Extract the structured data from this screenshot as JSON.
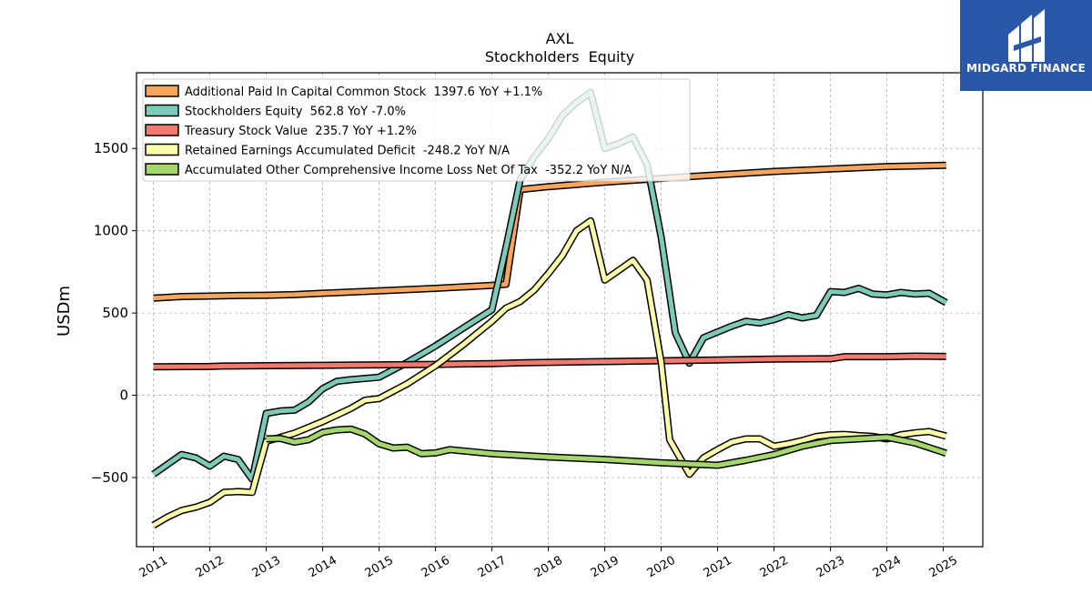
{
  "chart_data": {
    "type": "line",
    "title": "AXL",
    "subtitle": "Stockholders  Equity",
    "ylabel": "USDm",
    "xlabel": "",
    "xlim": [
      2010.7,
      2025.7
    ],
    "ylim": [
      -920,
      1960
    ],
    "grid": true,
    "legend_position": "top-left",
    "x_ticks": [
      2011,
      2012,
      2013,
      2014,
      2015,
      2016,
      2017,
      2018,
      2019,
      2020,
      2021,
      2022,
      2023,
      2024,
      2025
    ],
    "x_tick_labels": [
      "2011",
      "2012",
      "2013",
      "2014",
      "2015",
      "2016",
      "2017",
      "2018",
      "2019",
      "2020",
      "2021",
      "2022",
      "2023",
      "2024",
      "2025"
    ],
    "y_ticks": [
      -500,
      0,
      500,
      1000,
      1500
    ],
    "y_tick_labels": [
      "−500",
      "0",
      "500",
      "1000",
      "1500"
    ],
    "series": [
      {
        "name": "Additional Paid In Capital Common Stock  1397.6 YoY +1.1%",
        "color": "#f5a55c",
        "points": [
          [
            2011.0,
            590
          ],
          [
            2011.5,
            600
          ],
          [
            2012.0,
            603
          ],
          [
            2012.5,
            606
          ],
          [
            2013.0,
            608
          ],
          [
            2013.5,
            612
          ],
          [
            2014.0,
            620
          ],
          [
            2015.0,
            635
          ],
          [
            2016.0,
            650
          ],
          [
            2017.0,
            668
          ],
          [
            2017.25,
            675
          ],
          [
            2017.5,
            1250
          ],
          [
            2018.0,
            1268
          ],
          [
            2019.0,
            1295
          ],
          [
            2020.0,
            1318
          ],
          [
            2021.0,
            1340
          ],
          [
            2022.0,
            1360
          ],
          [
            2023.0,
            1375
          ],
          [
            2024.0,
            1390
          ],
          [
            2025.05,
            1398
          ]
        ]
      },
      {
        "name": "Stockholders Equity  562.8 YoY -7.0%",
        "color": "#7ecab9",
        "points": [
          [
            2011.0,
            -480
          ],
          [
            2011.25,
            -420
          ],
          [
            2011.5,
            -360
          ],
          [
            2011.75,
            -380
          ],
          [
            2012.0,
            -430
          ],
          [
            2012.25,
            -370
          ],
          [
            2012.5,
            -390
          ],
          [
            2012.75,
            -510
          ],
          [
            2013.0,
            -110
          ],
          [
            2013.25,
            -95
          ],
          [
            2013.5,
            -90
          ],
          [
            2013.75,
            -40
          ],
          [
            2014.0,
            40
          ],
          [
            2014.25,
            85
          ],
          [
            2014.5,
            95
          ],
          [
            2015.0,
            110
          ],
          [
            2015.5,
            200
          ],
          [
            2016.0,
            300
          ],
          [
            2016.5,
            410
          ],
          [
            2017.0,
            520
          ],
          [
            2017.25,
            900
          ],
          [
            2017.5,
            1310
          ],
          [
            2017.75,
            1450
          ],
          [
            2018.0,
            1560
          ],
          [
            2018.25,
            1700
          ],
          [
            2018.5,
            1780
          ],
          [
            2018.75,
            1840
          ],
          [
            2019.0,
            1500
          ],
          [
            2019.25,
            1530
          ],
          [
            2019.5,
            1570
          ],
          [
            2019.75,
            1400
          ],
          [
            2020.0,
            960
          ],
          [
            2020.25,
            380
          ],
          [
            2020.5,
            195
          ],
          [
            2020.75,
            350
          ],
          [
            2021.0,
            385
          ],
          [
            2021.25,
            420
          ],
          [
            2021.5,
            450
          ],
          [
            2021.75,
            440
          ],
          [
            2022.0,
            460
          ],
          [
            2022.25,
            490
          ],
          [
            2022.5,
            470
          ],
          [
            2022.75,
            485
          ],
          [
            2023.0,
            630
          ],
          [
            2023.25,
            625
          ],
          [
            2023.5,
            650
          ],
          [
            2023.75,
            615
          ],
          [
            2024.0,
            610
          ],
          [
            2024.25,
            625
          ],
          [
            2024.5,
            615
          ],
          [
            2024.75,
            620
          ],
          [
            2025.05,
            563
          ]
        ]
      },
      {
        "name": "Treasury Stock Value  235.7 YoY +1.2%",
        "color": "#f07a6e",
        "points": [
          [
            2011.0,
            173
          ],
          [
            2012.0,
            175
          ],
          [
            2012.25,
            178
          ],
          [
            2013.0,
            180
          ],
          [
            2014.0,
            182
          ],
          [
            2015.0,
            185
          ],
          [
            2016.0,
            188
          ],
          [
            2017.0,
            193
          ],
          [
            2017.5,
            197
          ],
          [
            2018.0,
            200
          ],
          [
            2019.0,
            205
          ],
          [
            2020.0,
            210
          ],
          [
            2021.0,
            215
          ],
          [
            2022.0,
            220
          ],
          [
            2023.0,
            222
          ],
          [
            2023.25,
            235
          ],
          [
            2024.0,
            235
          ],
          [
            2024.5,
            238
          ],
          [
            2025.05,
            236
          ]
        ]
      },
      {
        "name": "Retained Earnings Accumulated Deficit  -248.2 YoY N/A",
        "color": "#fbfbaa",
        "points": [
          [
            2011.0,
            -790
          ],
          [
            2011.25,
            -740
          ],
          [
            2011.5,
            -700
          ],
          [
            2011.75,
            -680
          ],
          [
            2012.0,
            -650
          ],
          [
            2012.25,
            -590
          ],
          [
            2012.5,
            -585
          ],
          [
            2012.75,
            -590
          ],
          [
            2013.0,
            -280
          ],
          [
            2013.5,
            -230
          ],
          [
            2014.0,
            -160
          ],
          [
            2014.25,
            -120
          ],
          [
            2014.5,
            -80
          ],
          [
            2014.75,
            -30
          ],
          [
            2015.0,
            -20
          ],
          [
            2015.5,
            70
          ],
          [
            2016.0,
            180
          ],
          [
            2016.5,
            310
          ],
          [
            2017.0,
            450
          ],
          [
            2017.25,
            530
          ],
          [
            2017.5,
            570
          ],
          [
            2017.75,
            640
          ],
          [
            2018.0,
            740
          ],
          [
            2018.25,
            850
          ],
          [
            2018.5,
            1000
          ],
          [
            2018.75,
            1060
          ],
          [
            2019.0,
            700
          ],
          [
            2019.25,
            760
          ],
          [
            2019.5,
            820
          ],
          [
            2019.75,
            700
          ],
          [
            2020.0,
            200
          ],
          [
            2020.15,
            -270
          ],
          [
            2020.5,
            -480
          ],
          [
            2020.75,
            -380
          ],
          [
            2021.0,
            -330
          ],
          [
            2021.25,
            -285
          ],
          [
            2021.5,
            -265
          ],
          [
            2021.75,
            -265
          ],
          [
            2022.0,
            -310
          ],
          [
            2022.25,
            -295
          ],
          [
            2022.5,
            -275
          ],
          [
            2022.75,
            -250
          ],
          [
            2023.0,
            -240
          ],
          [
            2023.25,
            -238
          ],
          [
            2023.5,
            -245
          ],
          [
            2023.75,
            -250
          ],
          [
            2024.0,
            -265
          ],
          [
            2024.25,
            -240
          ],
          [
            2024.5,
            -228
          ],
          [
            2024.75,
            -220
          ],
          [
            2025.05,
            -248
          ]
        ]
      },
      {
        "name": "Accumulated Other Comprehensive Income Loss Net Of Tax  -352.2 YoY N/A",
        "color": "#a4d66c",
        "points": [
          [
            2013.0,
            -265
          ],
          [
            2013.25,
            -262
          ],
          [
            2013.5,
            -285
          ],
          [
            2013.75,
            -270
          ],
          [
            2014.0,
            -225
          ],
          [
            2014.25,
            -210
          ],
          [
            2014.5,
            -205
          ],
          [
            2014.75,
            -235
          ],
          [
            2015.0,
            -295
          ],
          [
            2015.25,
            -320
          ],
          [
            2015.5,
            -315
          ],
          [
            2015.75,
            -355
          ],
          [
            2016.0,
            -350
          ],
          [
            2016.25,
            -330
          ],
          [
            2017.0,
            -355
          ],
          [
            2018.0,
            -375
          ],
          [
            2019.0,
            -390
          ],
          [
            2020.0,
            -410
          ],
          [
            2021.0,
            -425
          ],
          [
            2021.5,
            -395
          ],
          [
            2022.0,
            -360
          ],
          [
            2022.5,
            -310
          ],
          [
            2023.0,
            -275
          ],
          [
            2023.5,
            -265
          ],
          [
            2024.0,
            -255
          ],
          [
            2024.5,
            -290
          ],
          [
            2025.05,
            -352
          ]
        ]
      }
    ]
  },
  "logo": {
    "text": "MIDGARD FINANCE",
    "background": "#2b57a8"
  }
}
